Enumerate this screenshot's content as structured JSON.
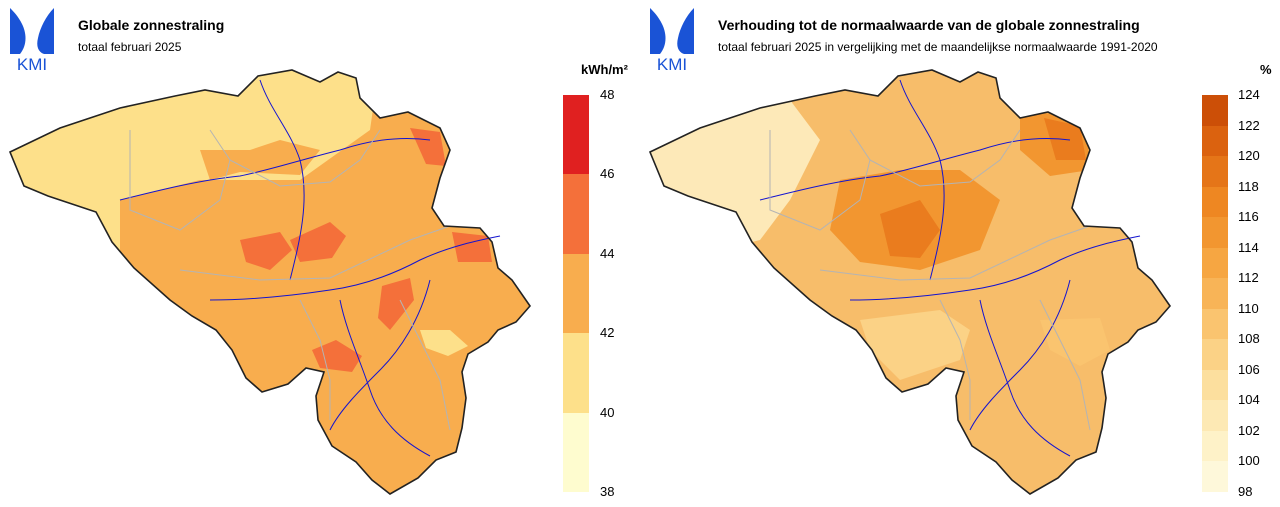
{
  "logo": {
    "text": "KMI",
    "color": "#1a53d6",
    "icon": "kmi-logo-icon"
  },
  "left": {
    "title": "Globale zonnestraling",
    "subtitle": "totaal februari 2025",
    "unit": "kWh/m²",
    "legend_ticks": [
      "48",
      "46",
      "44",
      "42",
      "40",
      "38"
    ],
    "legend_colors": [
      "#e02020",
      "#f4703a",
      "#f8ad4e",
      "#fde08a",
      "#fefccf"
    ],
    "map_colors": {
      "base": "#f8ad4e",
      "low": "#fde08a",
      "high": "#f4703a"
    }
  },
  "right": {
    "title": "Verhouding tot de normaalwaarde van de globale zonnestraling",
    "subtitle": "totaal februari 2025 in vergelijking met de maandelijkse normaalwaarde 1991-2020",
    "unit": "%",
    "legend_ticks": [
      "124",
      "122",
      "120",
      "118",
      "116",
      "114",
      "112",
      "110",
      "108",
      "106",
      "104",
      "102",
      "100",
      "98"
    ],
    "legend_colors": [
      "#cc4f07",
      "#db620f",
      "#e57518",
      "#ee8722",
      "#f29630",
      "#f6a642",
      "#f8b457",
      "#fac46f",
      "#fbd286",
      "#fcdf9e",
      "#fde9b4",
      "#fef2c8",
      "#fef8da"
    ],
    "map_colors": {
      "base": "#f7bd6a",
      "low": "#fde9b8",
      "high": "#ea7c1e"
    }
  }
}
